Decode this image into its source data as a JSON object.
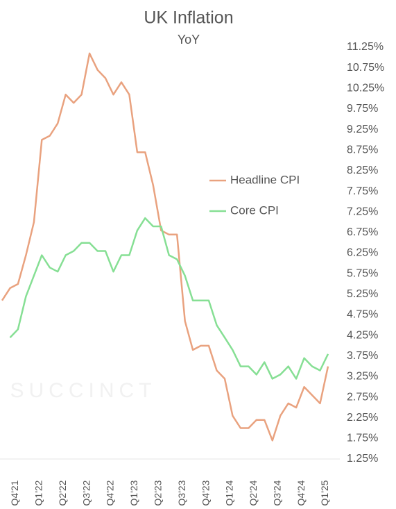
{
  "chart_data": {
    "type": "line",
    "title": "UK Inflation",
    "subtitle": "YoY",
    "watermark": "SUCCINCT",
    "categories": [
      null,
      "Q4'21",
      null,
      null,
      "Q1'22",
      null,
      null,
      "Q2'22",
      null,
      null,
      "Q3'22",
      null,
      null,
      "Q4'22",
      null,
      null,
      "Q1'23",
      null,
      null,
      "Q2'23",
      null,
      null,
      "Q3'23",
      null,
      null,
      "Q4'23",
      null,
      null,
      "Q1'24",
      null,
      null,
      "Q2'24",
      null,
      null,
      "Q3'24",
      null,
      null,
      "Q4'24",
      null,
      null,
      "Q1'25",
      null
    ],
    "series": [
      {
        "name": "Headline CPI",
        "color": "#e9a27f",
        "values": [
          5.1,
          5.4,
          5.5,
          6.2,
          7.0,
          9.0,
          9.1,
          9.4,
          10.1,
          9.9,
          10.1,
          11.1,
          10.7,
          10.5,
          10.1,
          10.4,
          10.1,
          8.7,
          8.7,
          7.9,
          6.8,
          6.7,
          6.7,
          4.6,
          3.9,
          4.0,
          4.0,
          3.4,
          3.2,
          2.3,
          2.0,
          2.0,
          2.2,
          2.2,
          1.7,
          2.3,
          2.6,
          2.5,
          3.0,
          2.8,
          2.6,
          3.5
        ]
      },
      {
        "name": "Core CPI",
        "color": "#86df94",
        "values": [
          null,
          4.2,
          4.4,
          5.2,
          5.7,
          6.2,
          5.9,
          5.8,
          6.2,
          6.3,
          6.5,
          6.5,
          6.3,
          6.3,
          5.8,
          6.2,
          6.2,
          6.8,
          7.1,
          6.9,
          6.9,
          6.2,
          6.1,
          5.7,
          5.1,
          5.1,
          5.1,
          4.5,
          4.2,
          3.9,
          3.5,
          3.5,
          3.3,
          3.6,
          3.2,
          3.3,
          3.5,
          3.2,
          3.7,
          3.5,
          3.4,
          3.8
        ]
      }
    ],
    "ylim": [
      1.25,
      11.25
    ],
    "yticks": [
      {
        "value": 1.25,
        "label": "1.25%"
      },
      {
        "value": 1.75,
        "label": "1.75%"
      },
      {
        "value": 2.25,
        "label": "2.25%"
      },
      {
        "value": 2.75,
        "label": "2.75%"
      },
      {
        "value": 3.25,
        "label": "3.25%"
      },
      {
        "value": 3.75,
        "label": "3.75%"
      },
      {
        "value": 4.25,
        "label": "4.25%"
      },
      {
        "value": 4.75,
        "label": "4.75%"
      },
      {
        "value": 5.25,
        "label": "5.25%"
      },
      {
        "value": 5.75,
        "label": "5.75%"
      },
      {
        "value": 6.25,
        "label": "6.25%"
      },
      {
        "value": 6.75,
        "label": "6.75%"
      },
      {
        "value": 7.25,
        "label": "7.25%"
      },
      {
        "value": 7.75,
        "label": "7.75%"
      },
      {
        "value": 8.25,
        "label": "8.25%"
      },
      {
        "value": 8.75,
        "label": "8.75%"
      },
      {
        "value": 9.25,
        "label": "9.25%"
      },
      {
        "value": 9.75,
        "label": "9.75%"
      },
      {
        "value": 10.25,
        "label": "10.25%"
      },
      {
        "value": 10.75,
        "label": "10.75%"
      },
      {
        "value": 11.25,
        "label": "11.25%"
      }
    ],
    "grid": false
  }
}
